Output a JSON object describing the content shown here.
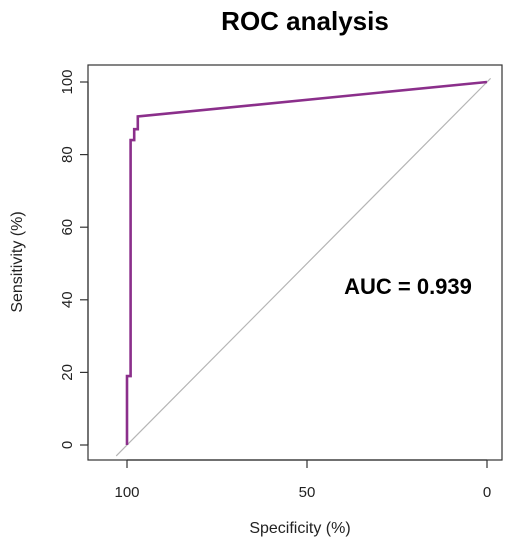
{
  "chart_data": {
    "type": "line",
    "title": "ROC analysis",
    "xlabel": "Specificity (%)",
    "ylabel": "Sensitivity (%)",
    "xlim": [
      100,
      0
    ],
    "ylim": [
      0,
      100
    ],
    "x_reversed": true,
    "x_ticks": [
      100,
      50,
      0
    ],
    "y_ticks": [
      0,
      20,
      40,
      60,
      80,
      100
    ],
    "grid": false,
    "annotation": "AUC = 0.939",
    "series": [
      {
        "color": "#8b2f8b",
        "x": [
          100,
          100,
          99,
          99,
          98,
          98,
          97,
          97,
          0
        ],
        "y": [
          0,
          19,
          19,
          84,
          84,
          87,
          87,
          90.5,
          100
        ]
      }
    ],
    "reference_line": {
      "color": "#b5b5b5",
      "x": [
        103,
        -1
      ],
      "y": [
        -3,
        101
      ]
    }
  }
}
